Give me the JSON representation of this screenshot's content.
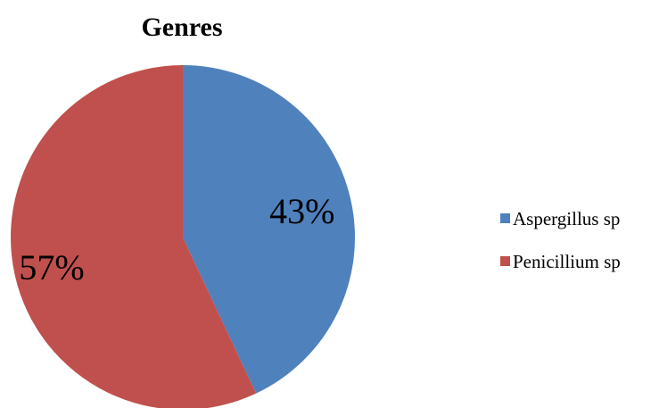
{
  "chart_data": {
    "type": "pie",
    "title": "Genres",
    "categories": [
      "Aspergillus sp",
      "Penicillium sp"
    ],
    "values": [
      43,
      57
    ],
    "labels": [
      "43%",
      "57%"
    ],
    "colors": [
      "#4F81BD",
      "#C0504D"
    ],
    "legend_position": "right"
  }
}
